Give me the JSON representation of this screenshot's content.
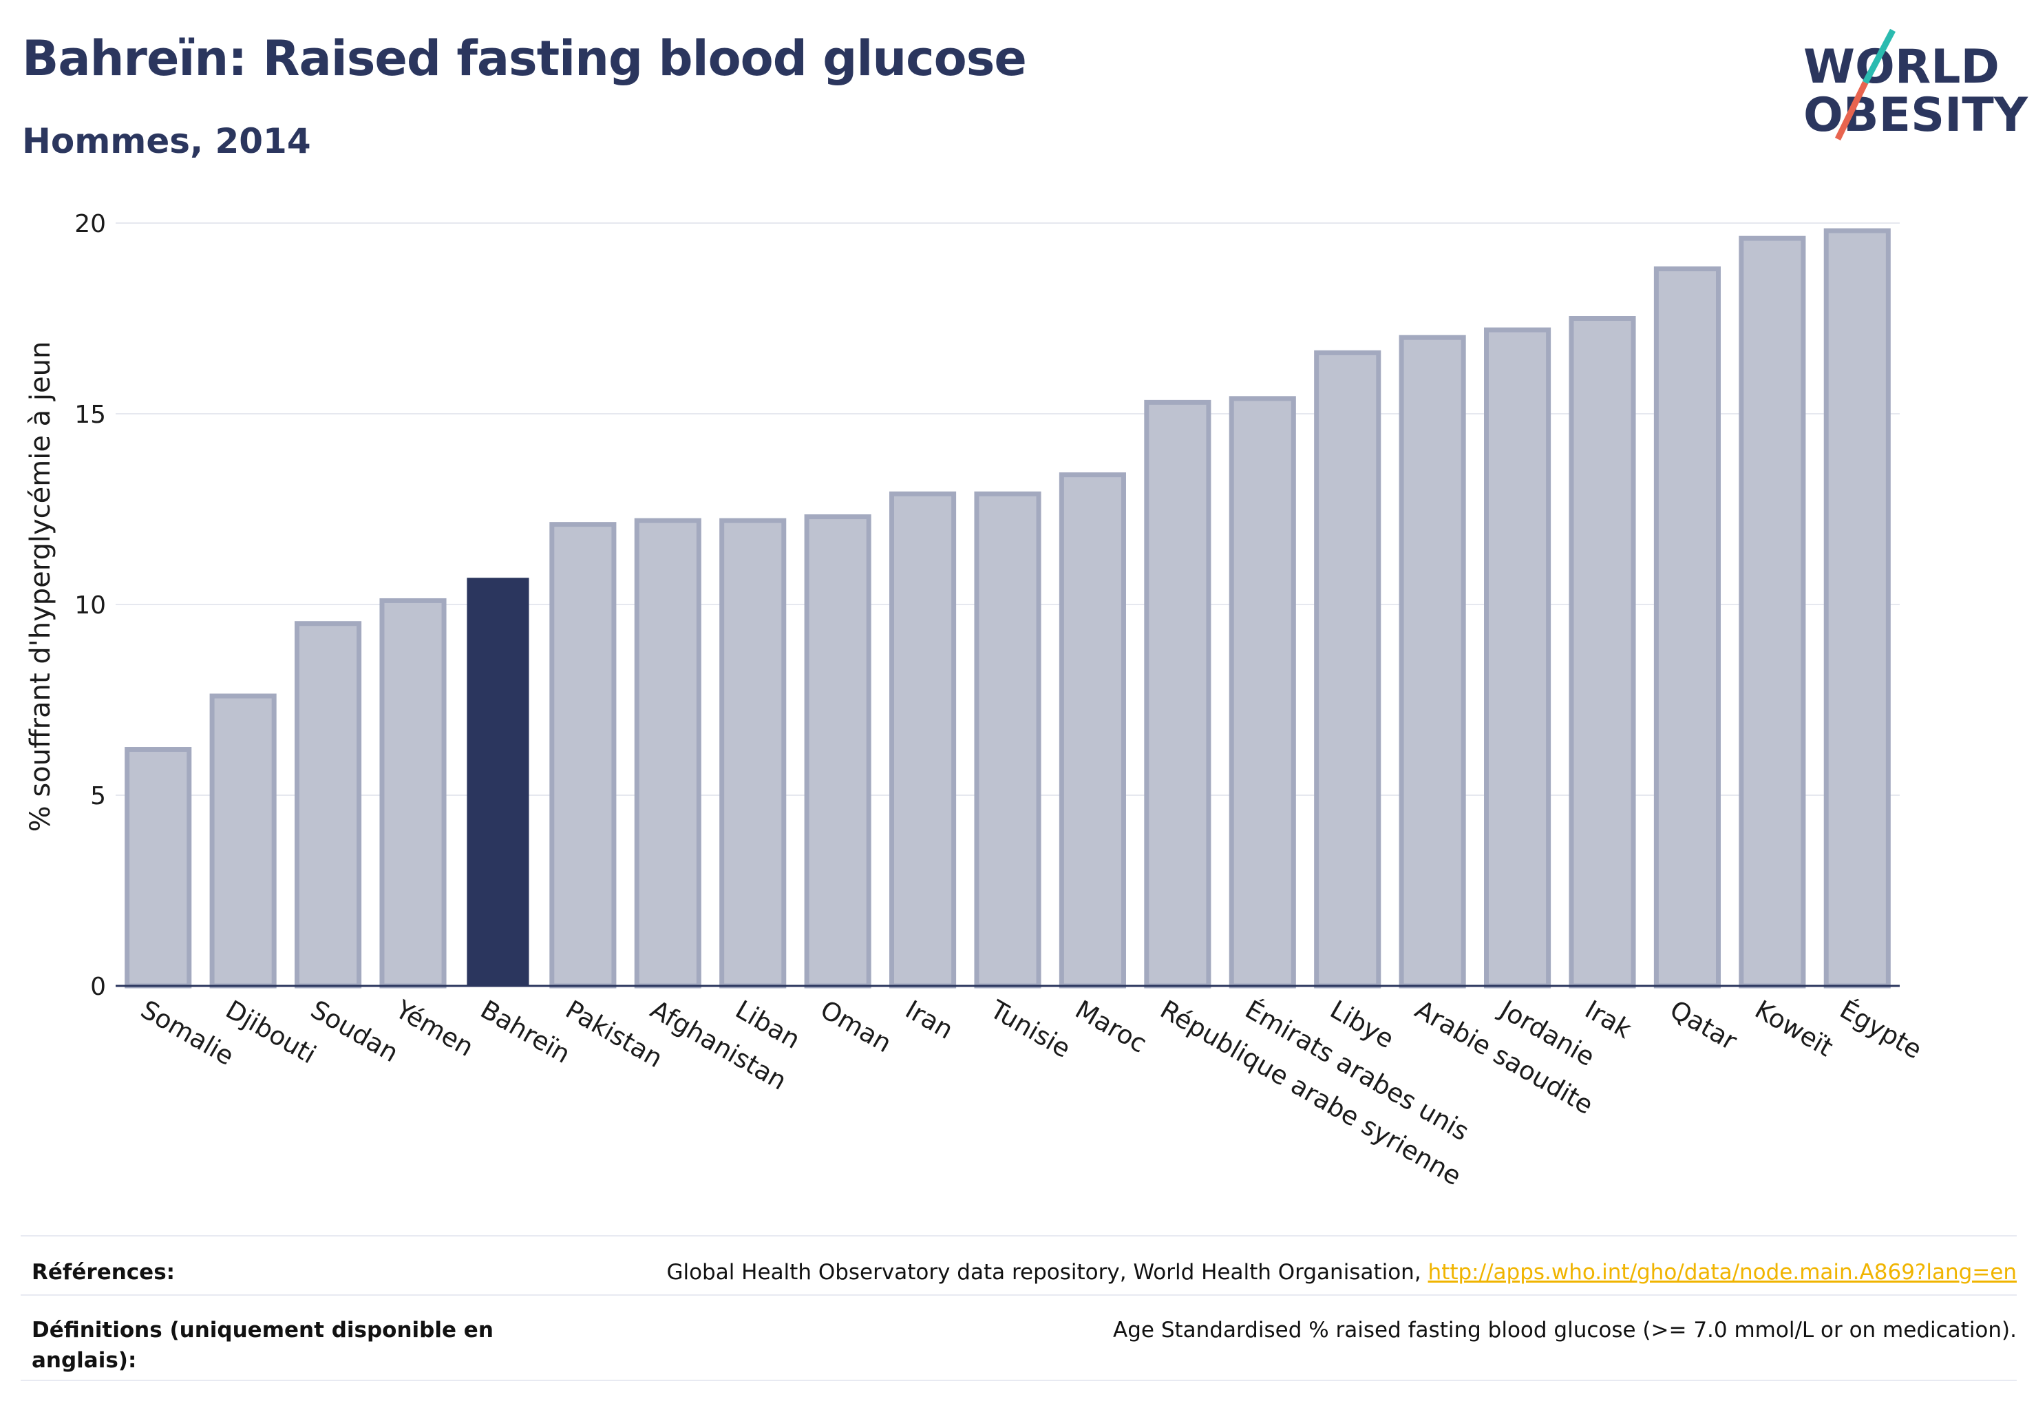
{
  "header": {
    "title": "Bahreïn: Raised fasting blood glucose",
    "subtitle": "Hommes, 2014"
  },
  "logo": {
    "line1": "WORLD",
    "line2": "OBESITY",
    "colors": {
      "text": "#2b365e",
      "slash_top": "#2bbbb0",
      "slash_bottom": "#e8644f"
    }
  },
  "chart_data": {
    "type": "bar",
    "ylabel": "% souffrant d'hyperglycémie à jeun",
    "ylim": [
      0,
      20
    ],
    "yticks": [
      0,
      5,
      10,
      15,
      20
    ],
    "grid": true,
    "highlight": "Bahreïn",
    "colors": {
      "bar": "#bec2d0",
      "bar_border": "#a3a9bf",
      "highlight": "#2b365e",
      "axis": "#2b365e",
      "grid": "#e6e8ef"
    },
    "categories": [
      "Somalie",
      "Djibouti",
      "Soudan",
      "Yémen",
      "Bahreïn",
      "Pakistan",
      "Afghanistan",
      "Liban",
      "Oman",
      "Iran",
      "Tunisie",
      "Maroc",
      "République arabe syrienne",
      "Émirats arabes unis",
      "Libye",
      "Arabie saoudite",
      "Jordanie",
      "Irak",
      "Qatar",
      "Koweït",
      "Égypte"
    ],
    "values": [
      6.2,
      7.6,
      9.5,
      10.1,
      10.7,
      12.1,
      12.2,
      12.2,
      12.3,
      12.9,
      12.9,
      13.4,
      15.3,
      15.4,
      16.6,
      17.0,
      17.2,
      17.5,
      18.8,
      19.6,
      19.8
    ]
  },
  "footer": {
    "references_label": "Références:",
    "references_text": "Global Health Observatory data repository, World Health Organisation,",
    "references_link": "http://apps.who.int/gho/data/node.main.A869?lang=en",
    "definitions_label": "Définitions (uniquement disponible en anglais):",
    "definitions_text": "Age Standardised % raised fasting blood glucose (>= 7.0 mmol/L or on medication)."
  }
}
